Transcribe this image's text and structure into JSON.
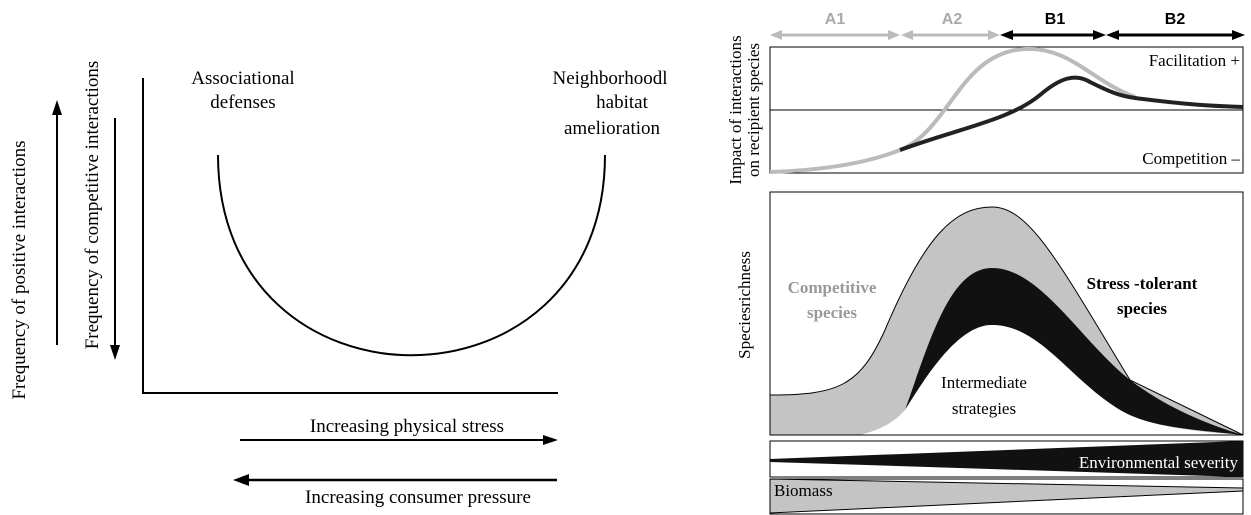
{
  "left_panel": {
    "y_axis_outer_label": "Frequency of positive interactions",
    "y_axis_inner_label": "Frequency of competitive interactions",
    "left_annotation": [
      "Associational",
      "defenses"
    ],
    "right_annotation": [
      "Neighborhoodl",
      "habitat",
      "amelioration"
    ],
    "x_arrow_right_label": "Increasing physical stress",
    "x_arrow_left_label": "Increasing consumer pressure"
  },
  "right_panel": {
    "phases": [
      "A1",
      "A2",
      "B1",
      "B2"
    ],
    "top_y_label": [
      "Impact of interactions",
      "on recipient species"
    ],
    "facilitation_label": "Facilitation   +",
    "competition_label": "Competition  –",
    "bottom_y_label": "Speciesrichness",
    "competitive_label": [
      "Competitive",
      "species"
    ],
    "stress_tolerant_label": [
      "Stress -tolerant",
      "species"
    ],
    "intermediate_label": [
      "Intermediate",
      "strategies"
    ],
    "severity_label": "Environmental  severity",
    "biomass_label": "Biomass"
  }
}
